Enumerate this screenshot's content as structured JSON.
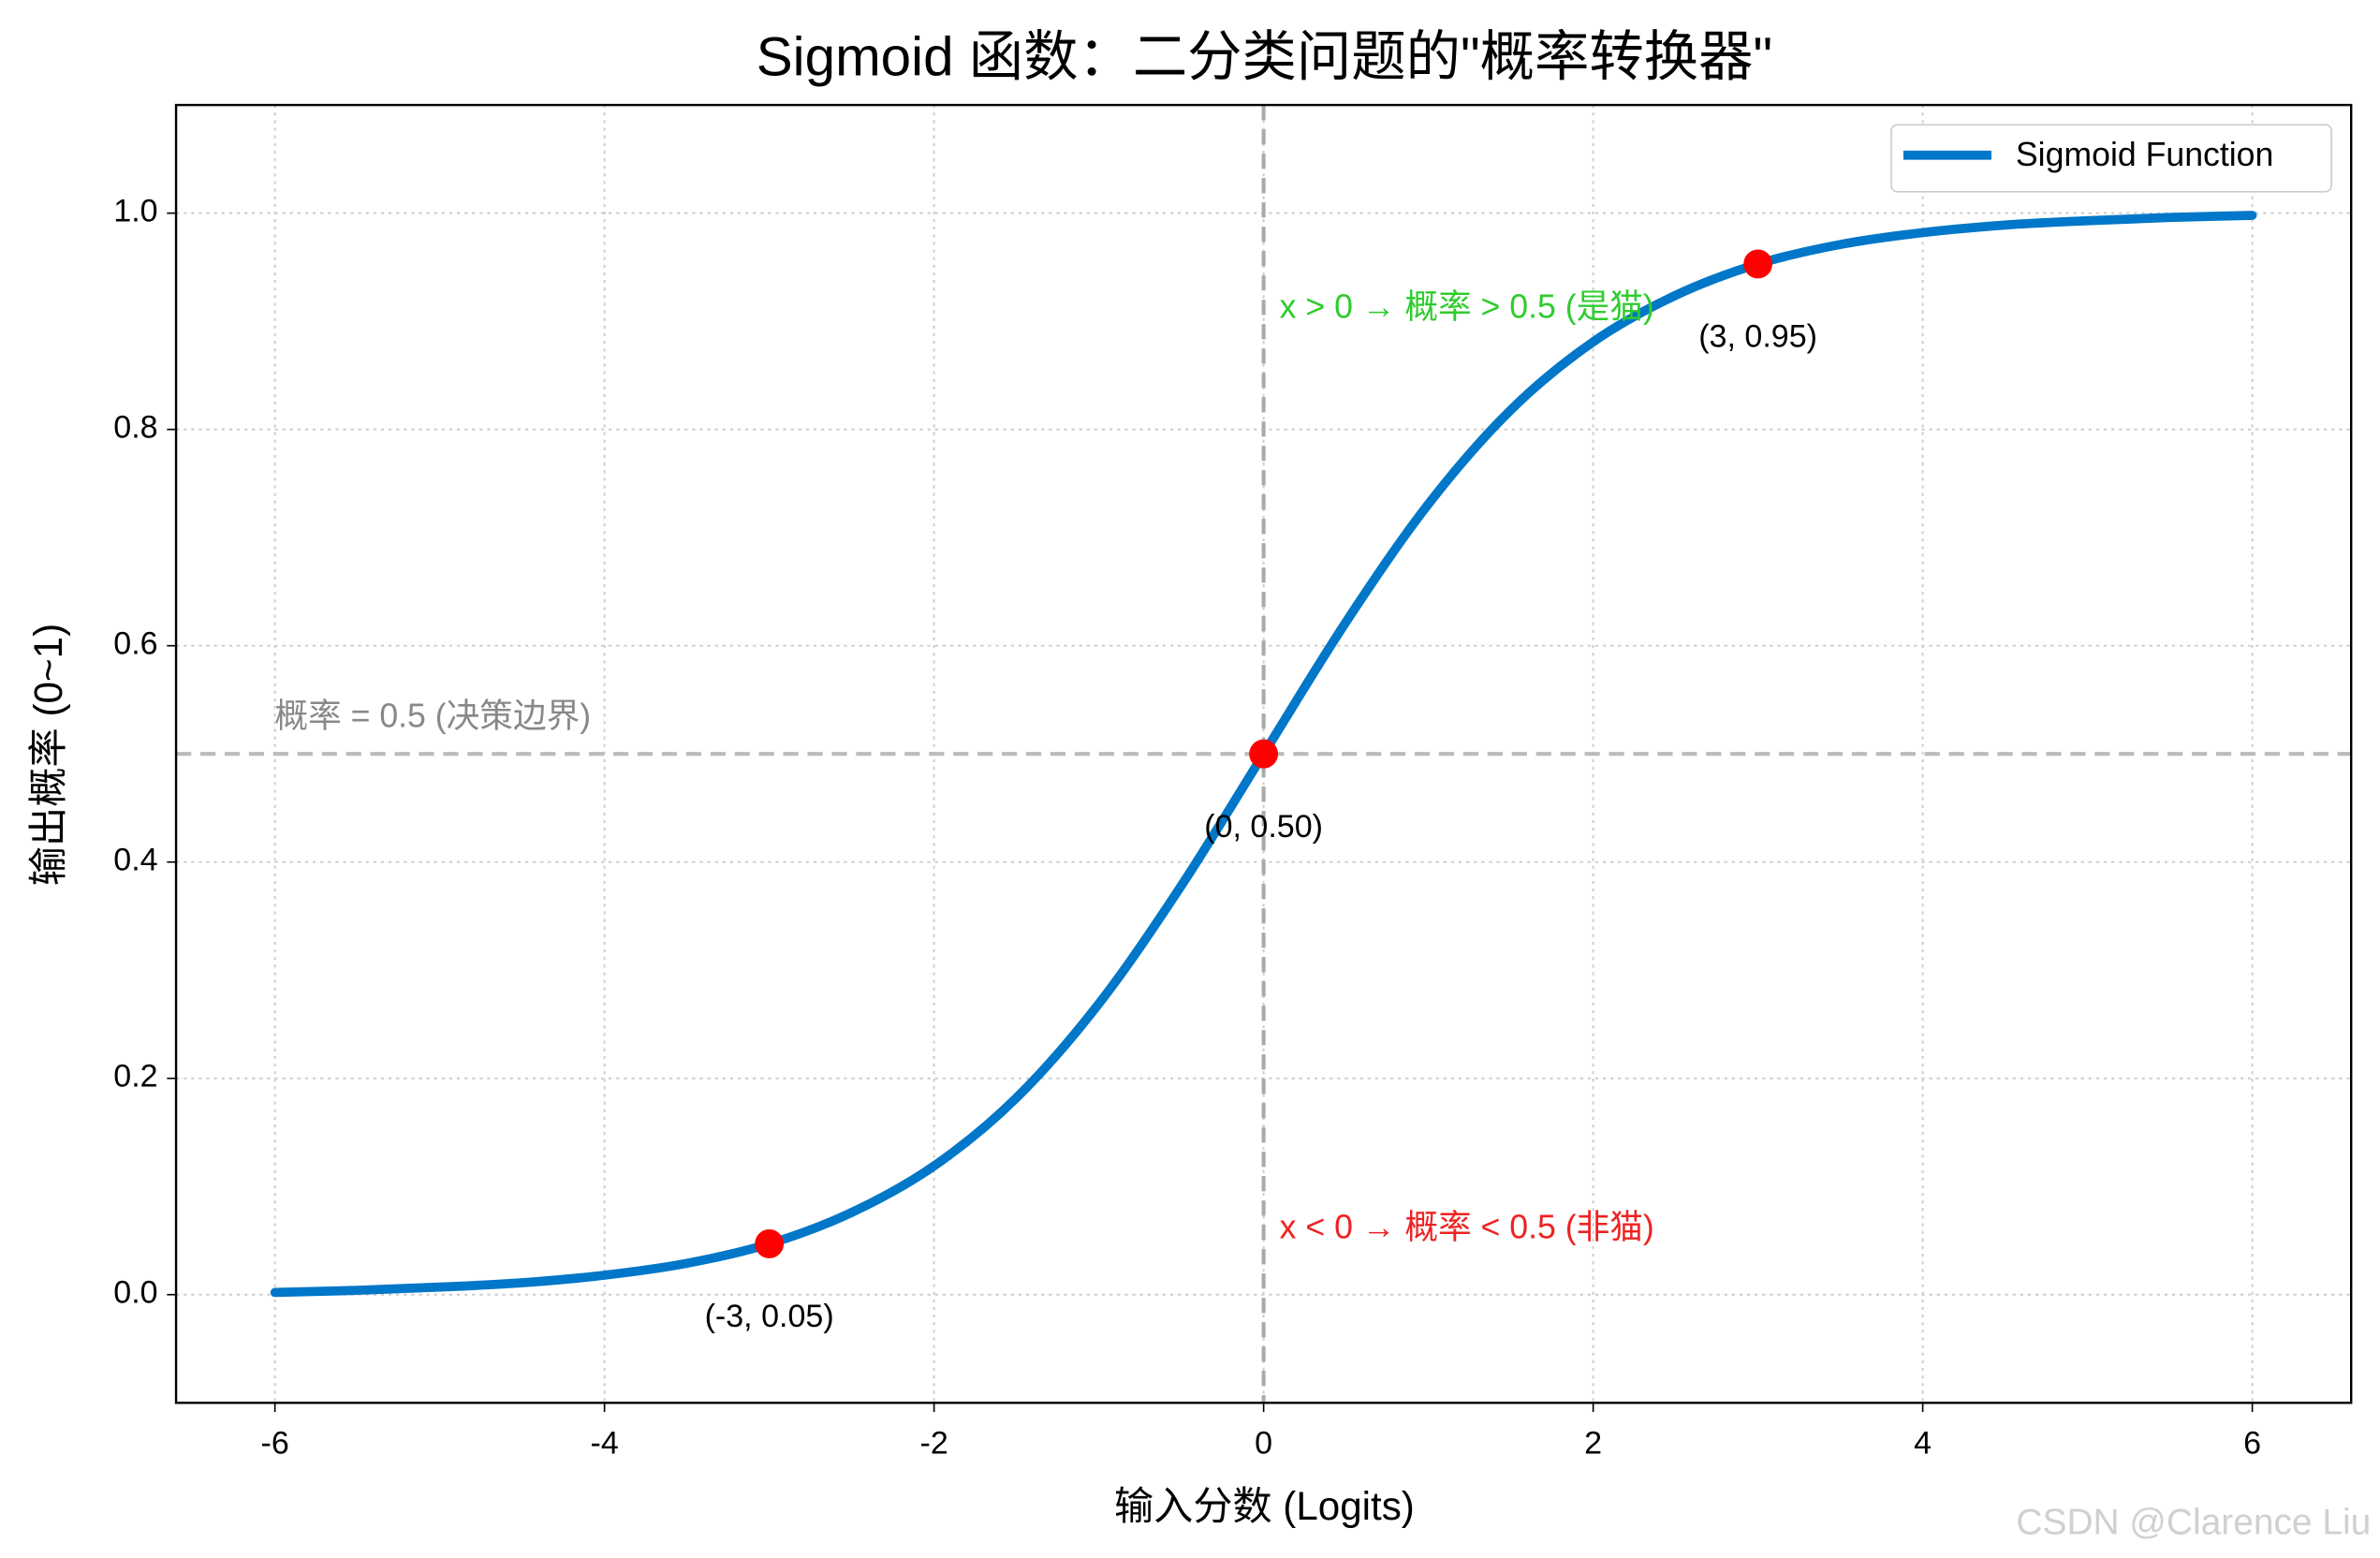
{
  "chart_data": {
    "type": "line",
    "title": "Sigmoid 函数：二分类问题的\"概率转换器\"",
    "x_label": "输入分数 (Logits)",
    "y_label": "输出概率 (0~1)",
    "series": [
      {
        "name": "Sigmoid Function",
        "color": "#0077c8",
        "x": [
          -6,
          -5.5,
          -5,
          -4.5,
          -4,
          -3.5,
          -3,
          -2.5,
          -2,
          -1.5,
          -1,
          -0.5,
          0,
          0.5,
          1,
          1.5,
          2,
          2.5,
          3,
          3.5,
          4,
          4.5,
          5,
          5.5,
          6
        ],
        "values": [
          0.002,
          0.004,
          0.007,
          0.011,
          0.018,
          0.029,
          0.047,
          0.076,
          0.119,
          0.182,
          0.269,
          0.378,
          0.5,
          0.622,
          0.731,
          0.818,
          0.881,
          0.924,
          0.953,
          0.971,
          0.982,
          0.989,
          0.993,
          0.996,
          0.998
        ]
      }
    ],
    "points": {
      "color": "#ff0000",
      "x": [
        -3,
        0,
        3
      ],
      "values": [
        0.047,
        0.5,
        0.953
      ],
      "value_labels": [
        "(-3, 0.05)",
        "(0, 0.50)",
        "(3, 0.95)"
      ]
    },
    "hline": {
      "value": 0.5,
      "color": "#bbbbbb",
      "label": "概率 = 0.5 (决策边界)"
    },
    "vline": {
      "value": 0,
      "color": "#aaaaaa"
    },
    "annotations": [
      {
        "text": "x > 0 → 概率 > 0.5 (是猫)",
        "color": "#2ecc2e"
      },
      {
        "text": "x < 0 → 概率 < 0.5 (非猫)",
        "color": "#ee2222"
      }
    ],
    "xlim": [
      -6.6,
      6.6
    ],
    "ylim": [
      -0.1,
      1.1
    ],
    "xticks": [
      -6,
      -4,
      -2,
      0,
      2,
      4,
      6
    ],
    "yticks": [
      {
        "value": 0,
        "label": "0.0"
      },
      0.2,
      0.4,
      0.6,
      0.8,
      {
        "value": 1,
        "label": "1.0"
      }
    ],
    "grid": true,
    "legend": "upper right",
    "watermark": "CSDN @Clarence Liu"
  }
}
